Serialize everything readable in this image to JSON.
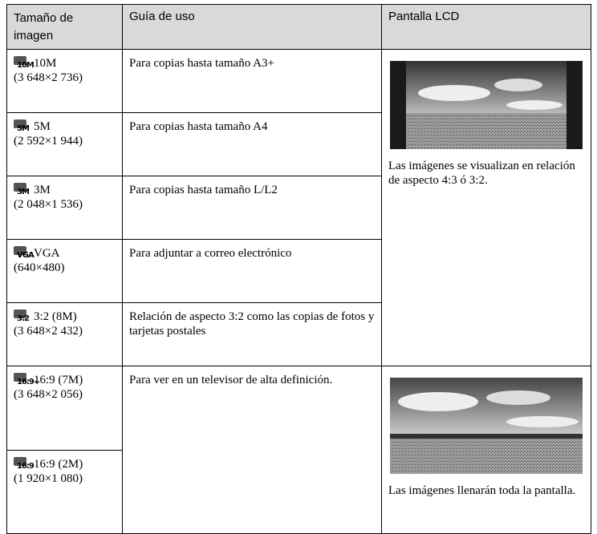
{
  "header": [
    "Tamaño de imagen",
    "Guía de uso",
    "Pantalla LCD"
  ],
  "rows": [
    {
      "icon": "10M",
      "size": "10M",
      "resolution": "(3 648×2 736)",
      "guide": "Para copias hasta tamaño A3+"
    },
    {
      "icon": "5M",
      "size": "5M",
      "resolution": "(2 592×1 944)",
      "guide": "Para copias hasta tamaño A4"
    },
    {
      "icon": "3M",
      "size": "3M",
      "resolution": "(2 048×1 536)",
      "guide": "Para copias hasta tamaño L/L2"
    },
    {
      "icon": "VGA",
      "size": "VGA",
      "resolution": "(640×480)",
      "guide": "Para adjuntar a correo electrónico"
    },
    {
      "icon": "3:2",
      "size": "3:2 (8M)",
      "resolution": "(3 648×2 432)",
      "guide": "Relación de aspecto 3:2 como las copias de fotos y tarjetas postales"
    },
    {
      "icon": "16:9+",
      "size": "16:9 (7M)",
      "resolution": "(3 648×2 056)"
    },
    {
      "icon": "16:9",
      "size": "16:9 (2M)",
      "resolution": "(1 920×1 080)"
    }
  ],
  "hd_guide": "Para ver en un televisor de alta definición.",
  "lcd": [
    "Las imágenes se visualizan en relación de aspecto 4:3 ó 3:2.",
    "Las imágenes llenarán toda la pantalla."
  ]
}
